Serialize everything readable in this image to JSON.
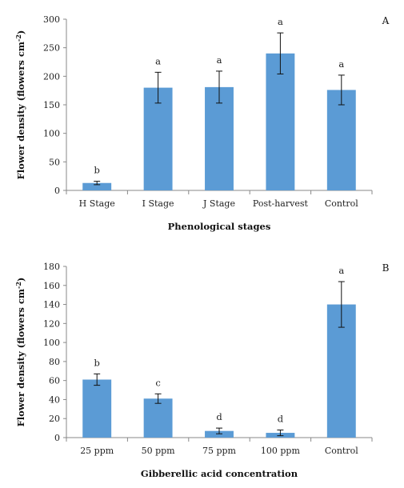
{
  "chart_data": [
    {
      "type": "bar",
      "panel_label": "A",
      "categories": [
        "H Stage",
        "I Stage",
        "J Stage",
        "Post-harvest",
        "Control"
      ],
      "values": [
        13,
        180,
        181,
        240,
        176
      ],
      "errors": [
        3,
        27,
        28,
        36,
        26
      ],
      "significance": [
        "b",
        "a",
        "a",
        "a",
        "a"
      ],
      "xlabel": "Phenological stages",
      "ylabel_main": "Flower density (flowers cm",
      "ylabel_sup": "-2",
      "ylabel_end": ")",
      "ylim": [
        0,
        300
      ],
      "yticks": [
        0,
        50,
        100,
        150,
        200,
        250,
        300
      ],
      "bar_color": "#5b9bd5",
      "grid": false
    },
    {
      "type": "bar",
      "panel_label": "B",
      "categories": [
        "25 ppm",
        "50 ppm",
        "75 ppm",
        "100 ppm",
        "Control"
      ],
      "values": [
        61,
        41,
        7,
        5,
        140
      ],
      "errors": [
        6,
        5,
        3,
        3,
        24
      ],
      "significance": [
        "b",
        "c",
        "d",
        "d",
        "a"
      ],
      "xlabel": "Gibberellic acid concentration",
      "ylabel_main": "Flower density (flowers cm",
      "ylabel_sup": "-2",
      "ylabel_end": ")",
      "ylim": [
        0,
        180
      ],
      "yticks": [
        0,
        20,
        40,
        60,
        80,
        100,
        120,
        140,
        160,
        180
      ],
      "bar_color": "#5b9bd5",
      "grid": false
    }
  ]
}
